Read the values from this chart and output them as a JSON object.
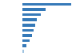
{
  "values": [
    100,
    48,
    37,
    30,
    26,
    23,
    19,
    14,
    9,
    4
  ],
  "bar_color": "#3579b8",
  "last_bar_color": "#9fc3e0",
  "background_color": "#ffffff",
  "grid_color": "#d0d0d0",
  "xlim": [
    0,
    115
  ],
  "bar_height": 0.55,
  "figsize": [
    1.0,
    0.71
  ],
  "dpi": 100
}
